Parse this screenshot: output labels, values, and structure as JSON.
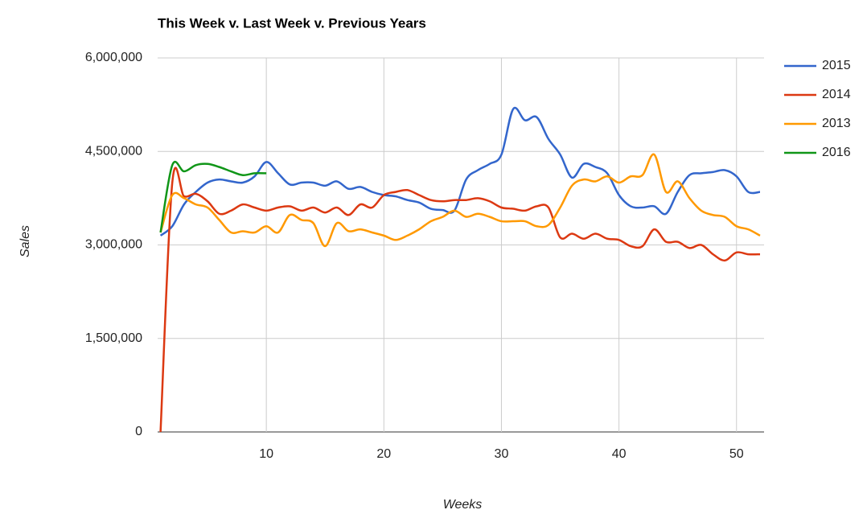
{
  "chart_data": {
    "type": "line",
    "title": "This Week v. Last Week v. Previous Years",
    "x_label": "Weeks",
    "y_label": "Sales",
    "x": [
      1,
      2,
      3,
      4,
      5,
      6,
      7,
      8,
      9,
      10,
      11,
      12,
      13,
      14,
      15,
      16,
      17,
      18,
      19,
      20,
      21,
      22,
      23,
      24,
      25,
      26,
      27,
      28,
      29,
      30,
      31,
      32,
      33,
      34,
      35,
      36,
      37,
      38,
      39,
      40,
      41,
      42,
      43,
      44,
      45,
      46,
      47,
      48,
      49,
      50,
      51,
      52
    ],
    "xlim": [
      1,
      52
    ],
    "xticks": [
      10,
      20,
      30,
      40,
      50
    ],
    "ylim": [
      0,
      6000000
    ],
    "yticks": [
      {
        "value": 0,
        "label": "0"
      },
      {
        "value": 1500000,
        "label": "1,500,000"
      },
      {
        "value": 3000000,
        "label": "3,000,000"
      },
      {
        "value": 4500000,
        "label": "4,500,000"
      },
      {
        "value": 6000000,
        "label": "6,000,000"
      }
    ],
    "grid": true,
    "legend": "right",
    "series": [
      {
        "name": "2015",
        "color": "#3366cc",
        "values": [
          3150000,
          3300000,
          3650000,
          3850000,
          4000000,
          4050000,
          4020000,
          4000000,
          4100000,
          4330000,
          4150000,
          3970000,
          4000000,
          4000000,
          3950000,
          4020000,
          3900000,
          3930000,
          3850000,
          3800000,
          3780000,
          3720000,
          3680000,
          3580000,
          3560000,
          3550000,
          4050000,
          4200000,
          4300000,
          4450000,
          5180000,
          5000000,
          5050000,
          4700000,
          4450000,
          4080000,
          4300000,
          4250000,
          4150000,
          3800000,
          3620000,
          3600000,
          3620000,
          3500000,
          3850000,
          4120000,
          4150000,
          4170000,
          4200000,
          4100000,
          3850000,
          3850000
        ]
      },
      {
        "name": "2014",
        "color": "#dc3912",
        "values": [
          0,
          4000000,
          3780000,
          3820000,
          3700000,
          3500000,
          3550000,
          3650000,
          3600000,
          3550000,
          3600000,
          3620000,
          3550000,
          3600000,
          3520000,
          3600000,
          3480000,
          3650000,
          3600000,
          3800000,
          3850000,
          3880000,
          3800000,
          3720000,
          3700000,
          3720000,
          3720000,
          3750000,
          3700000,
          3600000,
          3580000,
          3550000,
          3620000,
          3600000,
          3120000,
          3180000,
          3100000,
          3180000,
          3100000,
          3080000,
          2980000,
          2980000,
          3250000,
          3050000,
          3050000,
          2950000,
          3000000,
          2850000,
          2750000,
          2880000,
          2850000,
          2850000
        ]
      },
      {
        "name": "2013",
        "color": "#ff9900",
        "values": [
          3200000,
          3800000,
          3750000,
          3650000,
          3600000,
          3400000,
          3200000,
          3220000,
          3200000,
          3300000,
          3200000,
          3480000,
          3400000,
          3350000,
          2980000,
          3350000,
          3220000,
          3250000,
          3200000,
          3150000,
          3080000,
          3150000,
          3250000,
          3380000,
          3450000,
          3550000,
          3450000,
          3500000,
          3450000,
          3380000,
          3380000,
          3380000,
          3300000,
          3320000,
          3600000,
          3950000,
          4050000,
          4020000,
          4100000,
          4000000,
          4100000,
          4120000,
          4450000,
          3850000,
          4020000,
          3750000,
          3550000,
          3480000,
          3450000,
          3300000,
          3250000,
          3150000
        ]
      },
      {
        "name": "2016",
        "color": "#109618",
        "values": [
          3200000,
          4280000,
          4180000,
          4280000,
          4300000,
          4250000,
          4180000,
          4120000,
          4150000,
          4150000,
          null,
          null,
          null,
          null,
          null,
          null,
          null,
          null,
          null,
          null,
          null,
          null,
          null,
          null,
          null,
          null,
          null,
          null,
          null,
          null,
          null,
          null,
          null,
          null,
          null,
          null,
          null,
          null,
          null,
          null,
          null,
          null,
          null,
          null,
          null,
          null,
          null,
          null,
          null,
          null,
          null,
          null
        ]
      }
    ]
  }
}
